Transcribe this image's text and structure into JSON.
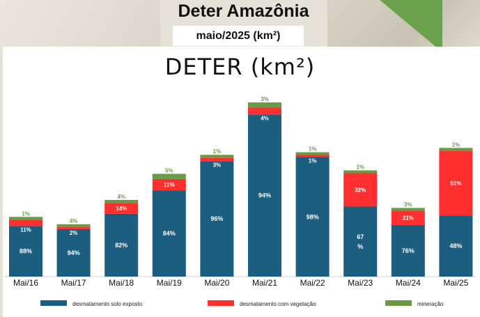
{
  "header": {
    "title": "Deter Amazônia",
    "subtitle": "maio/2025 (km²)"
  },
  "colors": {
    "solo_exposto": "#1b5e80",
    "vegetacao": "#ff2f2f",
    "mineracao": "#6a9a45"
  },
  "chart_data": {
    "type": "bar",
    "stacked": true,
    "title": "DETER (km²)",
    "xlabel": "",
    "ylabel": "",
    "grid": false,
    "legend_position": "bottom",
    "categories": [
      "Mai/16",
      "Mai/17",
      "Mai/18",
      "Mai/19",
      "Mai/20",
      "Mai/21",
      "Mai/22",
      "Mai/23",
      "Mai/24",
      "Mai/25"
    ],
    "relative_heights": [
      0.33,
      0.29,
      0.44,
      0.59,
      0.69,
      1.0,
      0.7,
      0.6,
      0.39,
      0.73
    ],
    "series": [
      {
        "name": "desmatamento solo exposto",
        "color": "#1b5e80",
        "values": [
          88,
          94,
          82,
          84,
          96,
          94,
          98,
          67,
          76,
          48
        ],
        "labels": [
          "88%",
          "94%",
          "82%",
          "84%",
          "96%",
          "94%",
          "98%",
          "67\n%",
          "76%",
          "48%"
        ]
      },
      {
        "name": "desmatamento com vegetação",
        "color": "#ff2f2f",
        "values": [
          11,
          2,
          14,
          11,
          3,
          4,
          1,
          32,
          21,
          51
        ],
        "labels": [
          "11%",
          "2%",
          "14%",
          "11%",
          "3%",
          "4%",
          "1%",
          "32%",
          "21%",
          "51%"
        ]
      },
      {
        "name": "mineração",
        "color": "#6a9a45",
        "values": [
          1,
          4,
          4,
          5,
          1,
          3,
          1,
          1,
          3,
          1
        ],
        "labels": [
          "1%",
          "4%",
          "4%",
          "5%",
          "1%",
          "3%",
          "1%",
          "1%",
          "3%",
          "1%"
        ]
      }
    ]
  }
}
